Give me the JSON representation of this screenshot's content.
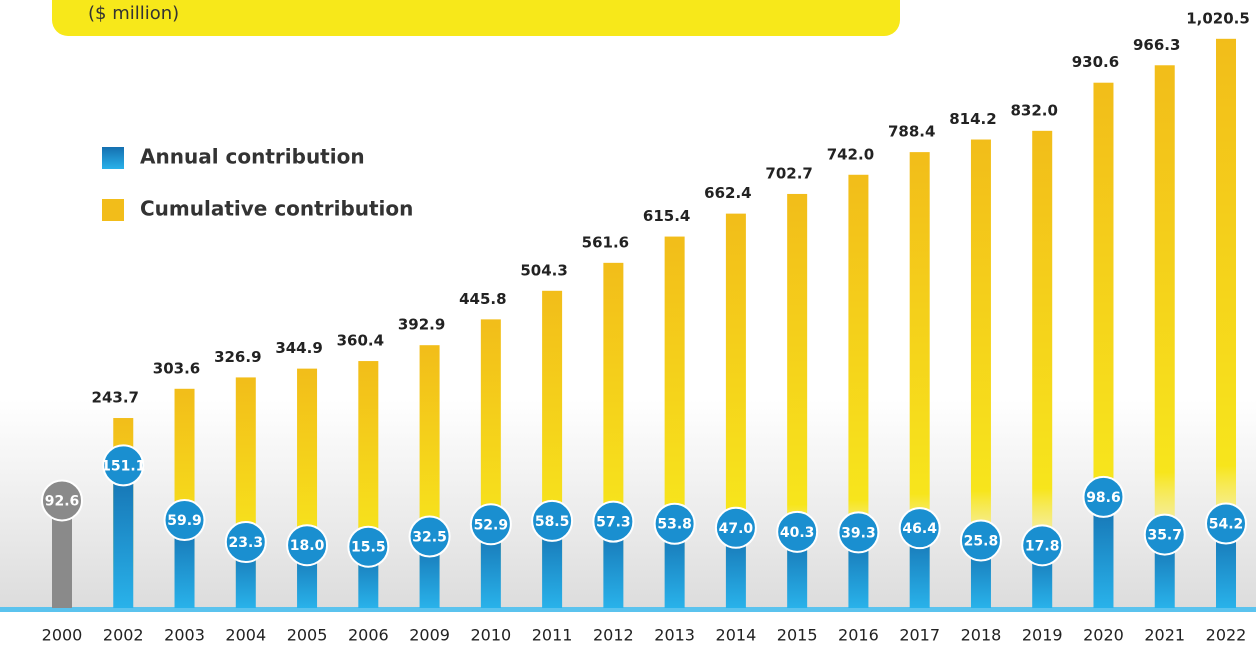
{
  "chart_data": {
    "type": "bar",
    "subtitle": "($ million)",
    "categories": [
      "2000",
      "2002",
      "2003",
      "2004",
      "2005",
      "2006",
      "2009",
      "2010",
      "2011",
      "2012",
      "2013",
      "2014",
      "2015",
      "2016",
      "2017",
      "2018",
      "2019",
      "2020",
      "2021",
      "2022"
    ],
    "series": [
      {
        "name": "Annual contribution",
        "color": "#1a8fd0",
        "axis": "y2",
        "colors": [
          "#8a8a8a",
          "#1a8fd0",
          "#1a8fd0",
          "#1a8fd0",
          "#1a8fd0",
          "#1a8fd0",
          "#1a8fd0",
          "#1a8fd0",
          "#1a8fd0",
          "#1a8fd0",
          "#1a8fd0",
          "#1a8fd0",
          "#1a8fd0",
          "#1a8fd0",
          "#1a8fd0",
          "#1a8fd0",
          "#1a8fd0",
          "#1a8fd0",
          "#1a8fd0",
          "#1a8fd0"
        ],
        "values": [
          92.6,
          151.1,
          59.9,
          23.3,
          18.0,
          15.5,
          32.5,
          52.9,
          58.5,
          57.3,
          53.8,
          47.0,
          40.3,
          39.3,
          46.4,
          25.8,
          17.8,
          98.6,
          35.7,
          54.2
        ],
        "value_labels": [
          "92.6",
          "151.1",
          "59.9",
          "23.3",
          "18.0",
          "15.5",
          "32.5",
          "52.9",
          "58.5",
          "57.3",
          "53.8",
          "47.0",
          "40.3",
          "39.3",
          "46.4",
          "25.8",
          "17.8",
          "98.6",
          "35.7",
          "54.2"
        ]
      },
      {
        "name": "Cumulative contribution",
        "color": "#f2bd1a",
        "values": [
          null,
          243.7,
          303.6,
          326.9,
          344.9,
          360.4,
          392.9,
          445.8,
          504.3,
          561.6,
          615.4,
          662.4,
          702.7,
          742.0,
          788.4,
          814.2,
          832.0,
          930.6,
          966.3,
          1020.5
        ],
        "value_labels": [
          null,
          "243.7",
          "303.6",
          "326.9",
          "344.9",
          "360.4",
          "392.9",
          "445.8",
          "504.3",
          "561.6",
          "615.4",
          "662.4",
          "702.7",
          "742.0",
          "788.4",
          "814.2",
          "832.0",
          "930.6",
          "966.3",
          "1,020.5"
        ]
      }
    ],
    "ylim": [
      0,
      1100
    ],
    "y2lim": [
      0,
      160
    ],
    "legend": "upper left"
  }
}
